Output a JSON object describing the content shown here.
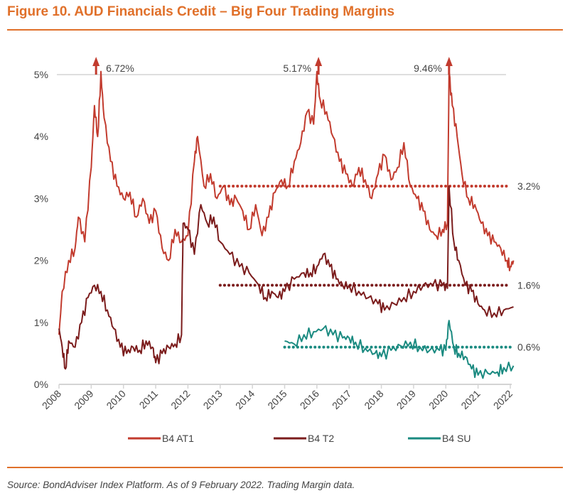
{
  "title": "Figure 10. AUD Financials Credit – Big Four Trading Margins",
  "source": "Source: BondAdviser Index Platform. As of 9 February 2022. Trading Margin data.",
  "chart_data": {
    "type": "line",
    "title": "Figure 10. AUD Financials Credit – Big Four Trading Margins",
    "xlabel": "",
    "ylabel": "",
    "xlim": [
      2008,
      2022.1
    ],
    "ylim": [
      0,
      5
    ],
    "xticks": [
      "2008",
      "2009",
      "2010",
      "2011",
      "2012",
      "2013",
      "2014",
      "2015",
      "2016",
      "2017",
      "2018",
      "2019",
      "2020",
      "2021",
      "2022"
    ],
    "yticks": [
      "0%",
      "1%",
      "2%",
      "3%",
      "4%",
      "5%"
    ],
    "grid": "5% line only",
    "legend": "bottom",
    "series": [
      {
        "name": "B4 AT1",
        "color": "#c23b2e",
        "x": [
          2008.0,
          2008.1,
          2008.3,
          2008.5,
          2008.6,
          2008.8,
          2009.0,
          2009.1,
          2009.2,
          2009.3,
          2009.4,
          2009.6,
          2009.8,
          2010.0,
          2010.2,
          2010.4,
          2010.6,
          2010.8,
          2011.0,
          2011.2,
          2011.4,
          2011.6,
          2011.8,
          2012.0,
          2012.2,
          2012.3,
          2012.5,
          2012.7,
          2012.9,
          2013.1,
          2013.3,
          2013.5,
          2013.7,
          2013.9,
          2014.1,
          2014.3,
          2014.5,
          2014.7,
          2014.9,
          2015.1,
          2015.3,
          2015.5,
          2015.7,
          2015.9,
          2016.0,
          2016.1,
          2016.3,
          2016.5,
          2016.7,
          2016.9,
          2017.1,
          2017.3,
          2017.5,
          2017.7,
          2017.9,
          2018.1,
          2018.3,
          2018.5,
          2018.7,
          2018.9,
          2019.1,
          2019.3,
          2019.5,
          2019.7,
          2019.9,
          2020.05,
          2020.1,
          2020.2,
          2020.35,
          2020.5,
          2020.7,
          2020.9,
          2021.1,
          2021.3,
          2021.5,
          2021.7,
          2021.9,
          2022.0,
          2022.1
        ],
        "y": [
          0.8,
          1.5,
          2.0,
          2.2,
          2.7,
          2.3,
          3.5,
          4.5,
          4.0,
          6.72,
          4.3,
          3.6,
          3.2,
          3.0,
          3.1,
          2.7,
          3.0,
          2.6,
          2.8,
          2.2,
          2.0,
          2.5,
          2.3,
          2.4,
          3.6,
          4.0,
          3.2,
          3.4,
          3.0,
          3.2,
          2.9,
          3.0,
          2.8,
          2.5,
          2.9,
          2.4,
          2.7,
          3.1,
          3.3,
          3.2,
          3.6,
          3.9,
          4.4,
          4.2,
          5.17,
          4.6,
          4.4,
          4.0,
          3.6,
          3.4,
          3.2,
          3.5,
          3.3,
          3.0,
          3.4,
          3.7,
          3.3,
          3.5,
          3.9,
          3.2,
          3.0,
          2.8,
          2.5,
          2.4,
          2.5,
          2.6,
          9.46,
          4.5,
          4.0,
          3.4,
          3.0,
          2.9,
          2.6,
          2.4,
          2.3,
          2.2,
          2.0,
          1.9,
          2.0
        ]
      },
      {
        "name": "B4 T2",
        "color": "#7b1c1c",
        "x": [
          2008.0,
          2008.1,
          2008.2,
          2008.3,
          2008.5,
          2008.7,
          2008.9,
          2009.1,
          2009.3,
          2009.5,
          2009.7,
          2009.9,
          2010.1,
          2010.3,
          2010.5,
          2010.7,
          2010.9,
          2011.0,
          2011.2,
          2011.4,
          2011.6,
          2011.8,
          2011.85,
          2012.0,
          2012.2,
          2012.4,
          2012.6,
          2012.8,
          2013.0,
          2013.3,
          2013.6,
          2013.9,
          2014.2,
          2014.4,
          2014.6,
          2014.8,
          2015.0,
          2015.3,
          2015.6,
          2015.8,
          2016.0,
          2016.2,
          2016.4,
          2016.6,
          2016.8,
          2017.0,
          2017.3,
          2017.6,
          2017.9,
          2018.1,
          2018.4,
          2018.7,
          2019.0,
          2019.3,
          2019.6,
          2019.9,
          2020.05,
          2020.1,
          2020.25,
          2020.4,
          2020.6,
          2020.8,
          2021.0,
          2021.2,
          2021.5,
          2021.8,
          2022.1
        ],
        "y": [
          0.9,
          0.6,
          0.25,
          0.7,
          0.6,
          1.0,
          1.4,
          1.6,
          1.5,
          1.2,
          0.9,
          0.6,
          0.5,
          0.6,
          0.55,
          0.7,
          0.6,
          0.35,
          0.5,
          0.6,
          0.65,
          0.8,
          2.6,
          2.5,
          2.1,
          2.9,
          2.6,
          2.7,
          2.3,
          2.1,
          1.9,
          1.8,
          1.6,
          1.4,
          1.5,
          1.4,
          1.5,
          1.7,
          1.8,
          1.8,
          1.9,
          2.1,
          1.9,
          1.7,
          1.6,
          1.6,
          1.5,
          1.4,
          1.3,
          1.2,
          1.3,
          1.4,
          1.5,
          1.6,
          1.6,
          1.6,
          1.55,
          3.2,
          2.3,
          2.0,
          1.6,
          1.5,
          1.3,
          1.2,
          1.15,
          1.2,
          1.25
        ]
      },
      {
        "name": "B4 SU",
        "color": "#1a8a80",
        "x": [
          2015.0,
          2015.3,
          2015.6,
          2015.9,
          2016.2,
          2016.5,
          2016.8,
          2017.0,
          2017.2,
          2017.5,
          2017.8,
          2018.0,
          2018.3,
          2018.6,
          2018.9,
          2019.2,
          2019.5,
          2019.8,
          2020.0,
          2020.1,
          2020.25,
          2020.4,
          2020.6,
          2020.8,
          2021.0,
          2021.3,
          2021.6,
          2021.8,
          2022.1
        ],
        "y": [
          0.7,
          0.65,
          0.8,
          0.85,
          0.9,
          0.8,
          0.75,
          0.75,
          0.68,
          0.58,
          0.5,
          0.45,
          0.55,
          0.62,
          0.68,
          0.6,
          0.55,
          0.55,
          0.55,
          1.03,
          0.6,
          0.5,
          0.45,
          0.25,
          0.15,
          0.18,
          0.2,
          0.27,
          0.3
        ]
      }
    ],
    "reference_lines": [
      {
        "value": 3.2,
        "label": "3.2%",
        "from": 2013,
        "to": 2022,
        "color": "#c23b2e"
      },
      {
        "value": 1.6,
        "label": "1.6%",
        "from": 2013,
        "to": 2022,
        "color": "#7b1c1c"
      },
      {
        "value": 0.6,
        "label": "0.6%",
        "from": 2015,
        "to": 2022,
        "color": "#1a8a80"
      }
    ],
    "annotations": [
      {
        "label": "6.72%",
        "x": 2009.15,
        "note": "off-scale peak arrow"
      },
      {
        "label": "5.17%",
        "x": 2016.05,
        "note": "off-scale peak arrow"
      },
      {
        "label": "9.46%",
        "x": 2020.1,
        "note": "off-scale peak arrow"
      }
    ]
  }
}
